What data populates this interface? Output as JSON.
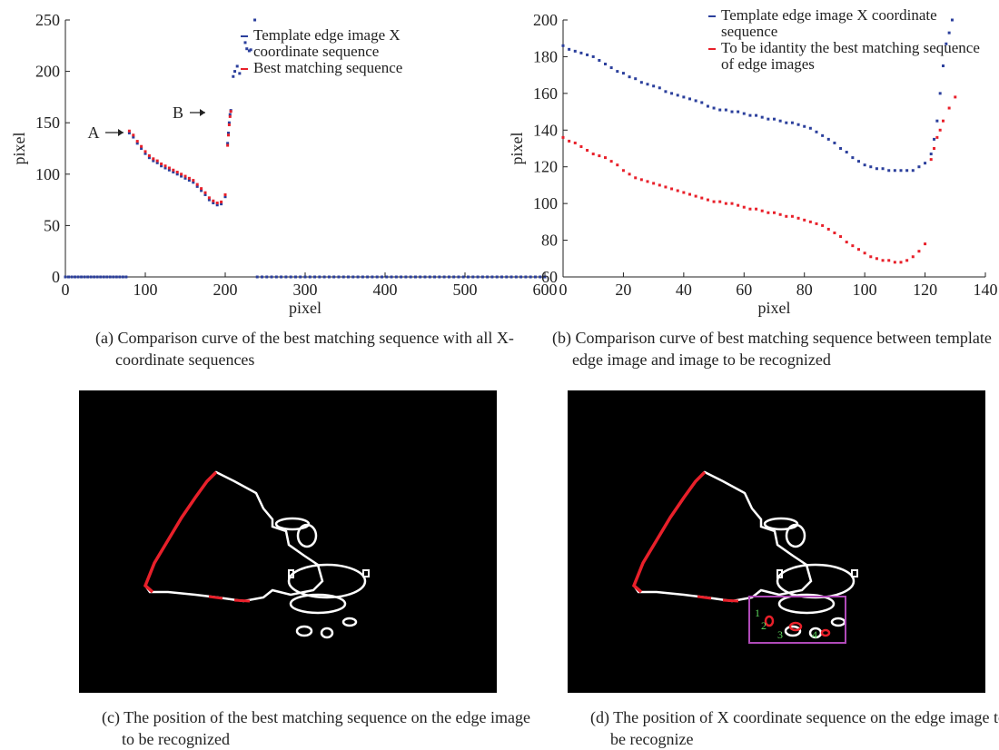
{
  "chart_data": [
    {
      "type": "scatter",
      "xlabel": "pixel",
      "ylabel": "pixel",
      "xlim": [
        0,
        600
      ],
      "ylim": [
        0,
        250
      ],
      "xticks": [
        0,
        100,
        200,
        300,
        400,
        500,
        600
      ],
      "yticks": [
        0,
        50,
        100,
        150,
        200,
        250
      ],
      "annotations": [
        "A",
        "B"
      ],
      "caption": "(a) Comparison curve of the best matching sequence with all X-coordinate sequences",
      "series": [
        {
          "name": "Template edge image X coordinate sequence",
          "color": "#2b3f9c",
          "x": [
            0,
            4,
            8,
            12,
            16,
            20,
            24,
            28,
            32,
            36,
            40,
            44,
            48,
            52,
            56,
            60,
            64,
            68,
            72,
            76,
            80,
            85,
            90,
            95,
            100,
            105,
            110,
            115,
            120,
            125,
            130,
            135,
            140,
            145,
            150,
            155,
            160,
            165,
            170,
            175,
            180,
            185,
            190,
            195,
            200,
            203,
            204,
            205,
            206,
            207,
            210,
            212,
            215,
            218,
            225,
            227,
            230,
            232,
            237,
            240,
            246,
            252,
            258,
            264,
            270,
            276,
            282,
            288,
            294,
            300,
            306,
            312,
            318,
            324,
            330,
            336,
            342,
            348,
            354,
            360,
            366,
            372,
            378,
            384,
            390,
            396,
            402,
            408,
            414,
            420,
            426,
            432,
            438,
            444,
            450,
            456,
            462,
            468,
            474,
            480,
            486,
            492,
            498,
            504,
            510,
            516,
            522,
            528,
            534,
            540,
            546,
            552,
            558,
            564,
            570,
            576,
            582,
            588,
            594,
            600
          ],
          "values": [
            0,
            0,
            0,
            0,
            0,
            0,
            0,
            0,
            0,
            0,
            0,
            0,
            0,
            0,
            0,
            0,
            0,
            0,
            0,
            0,
            140,
            136,
            130,
            125,
            120,
            116,
            113,
            111,
            108,
            106,
            104,
            102,
            100,
            98,
            96,
            94,
            92,
            88,
            84,
            80,
            75,
            72,
            70,
            71,
            78,
            130,
            140,
            150,
            158,
            162,
            195,
            200,
            205,
            198,
            228,
            222,
            220,
            221,
            250,
            0,
            0,
            0,
            0,
            0,
            0,
            0,
            0,
            0,
            0,
            0,
            0,
            0,
            0,
            0,
            0,
            0,
            0,
            0,
            0,
            0,
            0,
            0,
            0,
            0,
            0,
            0,
            0,
            0,
            0,
            0,
            0,
            0,
            0,
            0,
            0,
            0,
            0,
            0,
            0,
            0,
            0,
            0,
            0,
            0,
            0,
            0,
            0,
            0,
            0,
            0,
            0,
            0,
            0,
            0,
            0,
            0,
            0,
            0,
            0,
            0
          ]
        },
        {
          "name": "Best matching sequence",
          "color": "#e8202a",
          "x": [
            80,
            85,
            90,
            95,
            100,
            105,
            110,
            115,
            120,
            125,
            130,
            135,
            140,
            145,
            150,
            155,
            160,
            165,
            170,
            175,
            180,
            185,
            190,
            195,
            200,
            203,
            204,
            205,
            206,
            207
          ],
          "values": [
            142,
            138,
            132,
            127,
            122,
            118,
            115,
            113,
            110,
            108,
            106,
            104,
            102,
            100,
            98,
            96,
            94,
            90,
            86,
            82,
            77,
            74,
            72,
            73,
            80,
            128,
            138,
            148,
            156,
            161
          ]
        }
      ]
    },
    {
      "type": "scatter",
      "xlabel": "pixel",
      "ylabel": "pixel",
      "xlim": [
        0,
        140
      ],
      "ylim": [
        60,
        200
      ],
      "xticks": [
        0,
        20,
        40,
        60,
        80,
        100,
        120,
        140
      ],
      "yticks": [
        60,
        80,
        100,
        120,
        140,
        160,
        180,
        200
      ],
      "caption": "(b) Comparison curve of best matching sequence between template edge image and image to be recognized",
      "series": [
        {
          "name": "Template edge image X coordinate sequence",
          "color": "#2b3f9c",
          "x": [
            0,
            2,
            4,
            6,
            8,
            10,
            12,
            14,
            16,
            18,
            20,
            22,
            24,
            26,
            28,
            30,
            32,
            34,
            36,
            38,
            40,
            42,
            44,
            46,
            48,
            50,
            52,
            54,
            56,
            58,
            60,
            62,
            64,
            66,
            68,
            70,
            72,
            74,
            76,
            78,
            80,
            82,
            84,
            86,
            88,
            90,
            92,
            94,
            96,
            98,
            100,
            102,
            104,
            106,
            108,
            110,
            112,
            114,
            116,
            118,
            120,
            122,
            123,
            124,
            125,
            126,
            127,
            128,
            129
          ],
          "values": [
            186,
            184,
            183,
            182,
            181,
            180,
            178,
            176,
            174,
            172,
            171,
            169,
            168,
            166,
            165,
            164,
            163,
            161,
            160,
            159,
            158,
            157,
            156,
            155,
            153,
            152,
            151,
            151,
            150,
            150,
            149,
            148,
            148,
            147,
            146,
            146,
            145,
            144,
            144,
            143,
            142,
            141,
            139,
            137,
            135,
            133,
            130,
            128,
            125,
            123,
            121,
            120,
            119,
            119,
            118,
            118,
            118,
            118,
            118,
            120,
            122,
            127,
            135,
            145,
            160,
            175,
            187,
            193,
            200
          ]
        },
        {
          "name": "To be idantity the best matching sequence of edge images",
          "color": "#e8202a",
          "x": [
            0,
            2,
            4,
            6,
            8,
            10,
            12,
            14,
            16,
            18,
            20,
            22,
            24,
            26,
            28,
            30,
            32,
            34,
            36,
            38,
            40,
            42,
            44,
            46,
            48,
            50,
            52,
            54,
            56,
            58,
            60,
            62,
            64,
            66,
            68,
            70,
            72,
            74,
            76,
            78,
            80,
            82,
            84,
            86,
            88,
            90,
            92,
            94,
            96,
            98,
            100,
            102,
            104,
            106,
            108,
            110,
            112,
            114,
            116,
            118,
            120,
            122,
            123,
            124,
            125,
            126,
            128,
            130
          ],
          "values": [
            136,
            134,
            133,
            131,
            129,
            127,
            126,
            125,
            123,
            121,
            118,
            116,
            114,
            113,
            112,
            111,
            110,
            109,
            108,
            107,
            106,
            105,
            104,
            103,
            102,
            101,
            101,
            100,
            100,
            99,
            98,
            97,
            97,
            96,
            95,
            95,
            94,
            93,
            93,
            92,
            91,
            90,
            89,
            88,
            86,
            84,
            82,
            79,
            77,
            75,
            73,
            71,
            70,
            69,
            69,
            68,
            68,
            69,
            71,
            74,
            78,
            124,
            130,
            136,
            140,
            145,
            152,
            158
          ]
        }
      ]
    }
  ],
  "images": [
    {
      "caption": "(c) The position of the best matching sequence on the edge image to be recognized"
    },
    {
      "caption": "(d) The position of X coordinate sequence on the edge image to be recognize",
      "labels": [
        "1",
        "2",
        "3",
        "4"
      ]
    }
  ]
}
